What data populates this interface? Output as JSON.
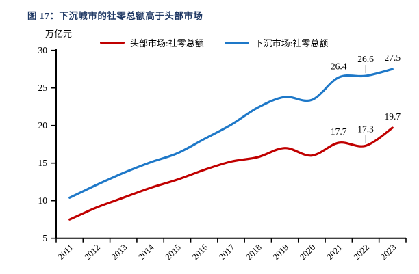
{
  "title": "图 17：下沉城市的社零总额高于头部市场",
  "chart_data": {
    "type": "line",
    "title": "图 17：下沉城市的社零总额高于头部市场",
    "unit_label": "万亿元",
    "xlabel": "",
    "ylabel": "万亿元",
    "ylim": [
      5,
      30
    ],
    "ytick_step": 5,
    "grid": false,
    "legend_position": "top",
    "categories": [
      "2011",
      "2012",
      "2013",
      "2014",
      "2015",
      "2016",
      "2017",
      "2018",
      "2019",
      "2020",
      "2021",
      "2022",
      "2023"
    ],
    "series": [
      {
        "name": "头部市场:社零总额",
        "color": "#C00000",
        "values": [
          7.5,
          9.1,
          10.4,
          11.7,
          12.8,
          14.1,
          15.2,
          15.8,
          17.0,
          16.0,
          17.7,
          17.3,
          19.7
        ],
        "point_labels": {
          "2021": "17.7",
          "2022": "17.3",
          "2023": "19.7"
        },
        "leader_years": [
          "2022"
        ]
      },
      {
        "name": "下沉市场:社零总额",
        "color": "#1E78C8",
        "values": [
          10.4,
          12.1,
          13.7,
          15.1,
          16.3,
          18.2,
          20.1,
          22.4,
          23.8,
          23.4,
          26.4,
          26.6,
          27.5
        ],
        "point_labels": {
          "2021": "26.4",
          "2022": "26.6",
          "2023": "27.5"
        },
        "leader_years": [
          "2022"
        ]
      }
    ],
    "colors": {
      "title": "#1F3864",
      "axis": "#000000",
      "leader_line": "#AFAFAF",
      "background": "#FFFFFF"
    }
  }
}
